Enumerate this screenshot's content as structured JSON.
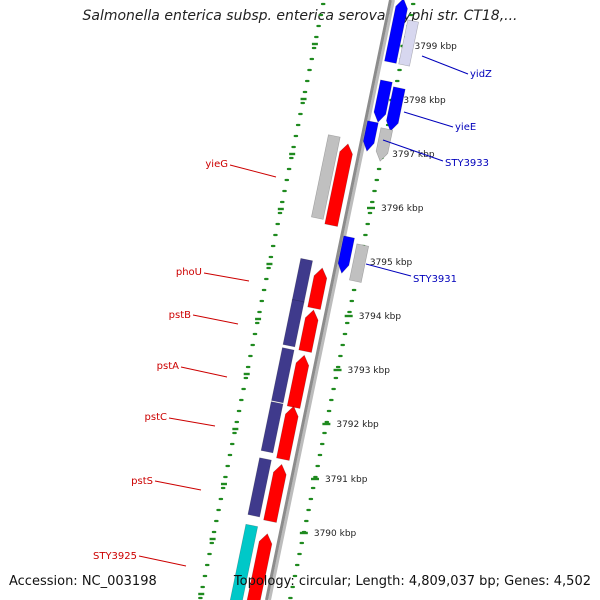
{
  "title": "Salmonella enterica subsp. enterica serovar Typhi str. CT18,...",
  "footer": {
    "accession": "Accession: NC_003198",
    "summary": "Topology: circular; Length: 4,809,037 bp; Genes: 4,502"
  },
  "colors": {
    "forward_cds": "#ff0000",
    "reverse_cds": "#0000ff",
    "rna": "#00c8c8",
    "forward_label": "#cc0000",
    "reverse_label": "#0000bb",
    "other": "#c0c0c0",
    "operon": "#3f3a8c",
    "ticks": "#1f8a1f"
  },
  "map": {
    "tick_labels": [
      {
        "text": "3799 kbp",
        "kbp": 3799
      },
      {
        "text": "3798 kbp",
        "kbp": 3798
      },
      {
        "text": "3797 kbp",
        "kbp": 3797
      },
      {
        "text": "3796 kbp",
        "kbp": 3796
      },
      {
        "text": "3795 kbp",
        "kbp": 3795
      },
      {
        "text": "3794 kbp",
        "kbp": 3794
      },
      {
        "text": "3793 kbp",
        "kbp": 3793
      },
      {
        "text": "3792 kbp",
        "kbp": 3792
      },
      {
        "text": "3791 kbp",
        "kbp": 3791
      },
      {
        "text": "3790 kbp",
        "kbp": 3790
      }
    ],
    "genes": [
      {
        "name": "yidZ",
        "strand": "reverse"
      },
      {
        "name": "yieE",
        "strand": "reverse"
      },
      {
        "name": "STY3933",
        "strand": "reverse"
      },
      {
        "name": "yieG",
        "strand": "forward"
      },
      {
        "name": "STY3931",
        "strand": "reverse"
      },
      {
        "name": "phoU",
        "strand": "forward"
      },
      {
        "name": "pstB",
        "strand": "forward"
      },
      {
        "name": "pstA",
        "strand": "forward"
      },
      {
        "name": "pstC",
        "strand": "forward"
      },
      {
        "name": "pstS",
        "strand": "forward"
      },
      {
        "name": "STY3925",
        "strand": "forward"
      }
    ]
  }
}
